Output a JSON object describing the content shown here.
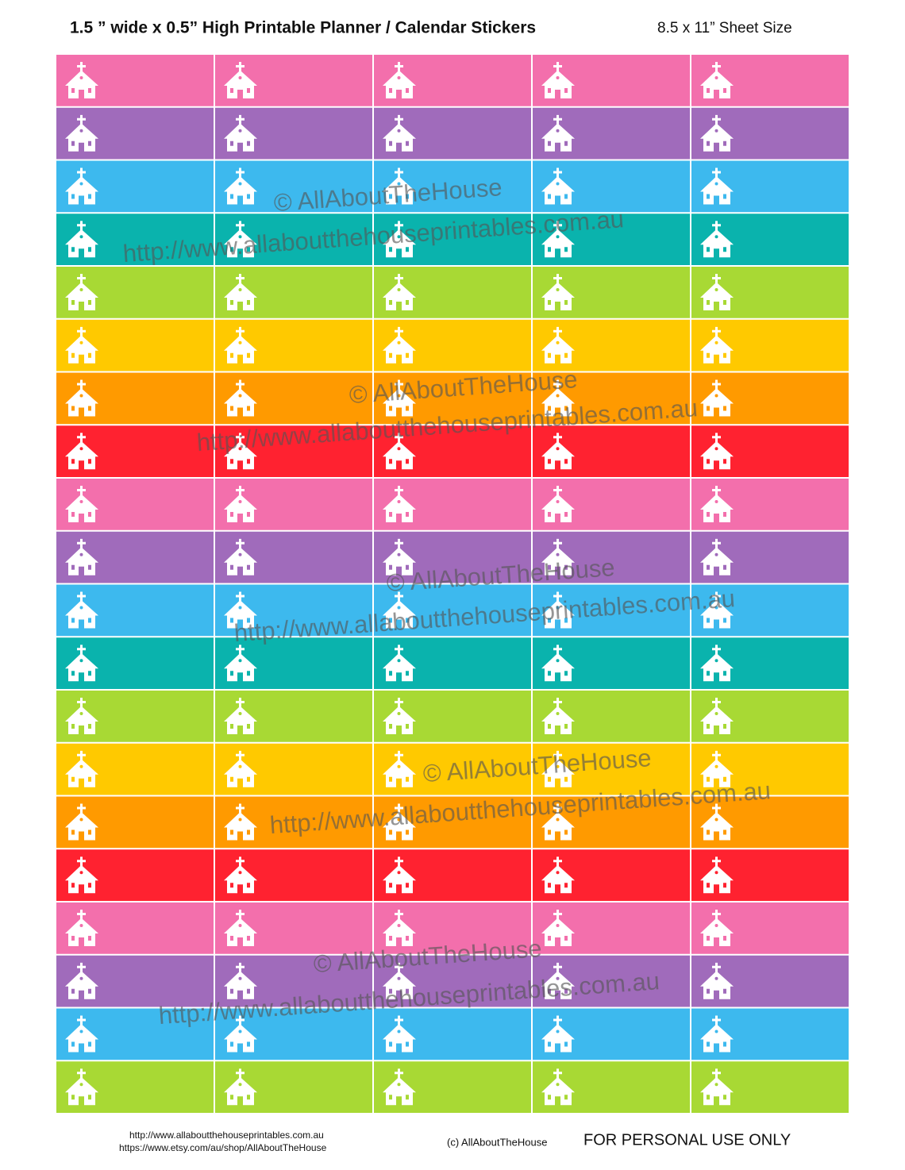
{
  "header": {
    "title": "1.5 ” wide x 0.5” High Printable Planner / Calendar Stickers",
    "sheet_size": "8.5 x 11” Sheet Size"
  },
  "sticker_sheet": {
    "row_colors": [
      "#f36fac",
      "#a06bbb",
      "#3db9ee",
      "#0ab3ad",
      "#a8d934",
      "#ffc900",
      "#ff9a00",
      "#ff2230",
      "#f36fac",
      "#a06bbb",
      "#3db9ee",
      "#0ab3ad",
      "#a8d934",
      "#ffc900",
      "#ff9a00",
      "#ff2230",
      "#f36fac",
      "#a06bbb",
      "#3db9ee",
      "#a8d934"
    ]
  },
  "watermarks": [
    {
      "mark": "© AllAboutTheHouse",
      "url": "http://www.allaboutthehouseprintables.com.au"
    },
    {
      "mark": "© AllAboutTheHouse",
      "url": "http://www.allaboutthehouseprintables.com.au"
    },
    {
      "mark": "© AllAboutTheHouse",
      "url": "http://www.allaboutthehouseprintables.com.au"
    },
    {
      "mark": "© AllAboutTheHouse",
      "url": "http://www.allaboutthehouseprintables.com.au"
    },
    {
      "mark": "© AllAboutTheHouse",
      "url": "http://www.allaboutthehouseprintables.com.au"
    }
  ],
  "footer": {
    "links": [
      "http://www.allaboutthehouseprintables.com.au",
      "https://www.etsy.com/au/shop/AllAboutTheHouse"
    ],
    "copyright": "(c) AllAboutTheHouse",
    "notice": "FOR PERSONAL USE ONLY"
  }
}
